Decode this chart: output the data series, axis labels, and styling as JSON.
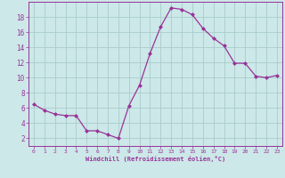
{
  "x": [
    0,
    1,
    2,
    3,
    4,
    5,
    6,
    7,
    8,
    9,
    10,
    11,
    12,
    13,
    14,
    15,
    16,
    17,
    18,
    19,
    20,
    21,
    22,
    23
  ],
  "y": [
    6.5,
    5.7,
    5.2,
    5.0,
    5.0,
    3.0,
    3.0,
    2.5,
    2.0,
    6.3,
    9.0,
    13.2,
    16.7,
    19.2,
    19.0,
    18.3,
    16.5,
    15.2,
    14.2,
    11.9,
    11.9,
    10.2,
    10.0,
    10.3
  ],
  "line_color": "#993399",
  "marker": "D",
  "marker_size": 2.0,
  "bg_color": "#cce8e8",
  "grid_color": "#aacccc",
  "xlabel": "Windchill (Refroidissement éolien,°C)",
  "xlim": [
    -0.5,
    23.5
  ],
  "ylim": [
    1,
    20
  ],
  "xticks": [
    0,
    1,
    2,
    3,
    4,
    5,
    6,
    7,
    8,
    9,
    10,
    11,
    12,
    13,
    14,
    15,
    16,
    17,
    18,
    19,
    20,
    21,
    22,
    23
  ],
  "yticks": [
    2,
    4,
    6,
    8,
    10,
    12,
    14,
    16,
    18
  ],
  "tick_color": "#993399",
  "label_color": "#993399",
  "spine_color": "#993399"
}
